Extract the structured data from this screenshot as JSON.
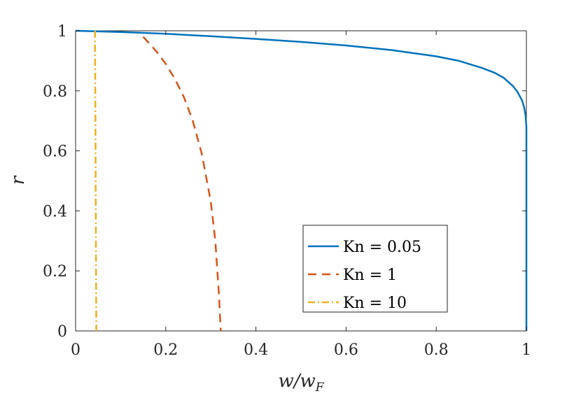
{
  "chart_data": {
    "type": "line",
    "title": "",
    "xlabel": {
      "base": "w/w",
      "sub": "F"
    },
    "ylabel": "r",
    "xlim": [
      0,
      1
    ],
    "ylim": [
      0,
      1
    ],
    "xticks": [
      "0",
      "0.2",
      "0.4",
      "0.6",
      "0.8",
      "1"
    ],
    "yticks": [
      "0",
      "0.2",
      "0.4",
      "0.6",
      "0.8",
      "1"
    ],
    "grid": false,
    "legend_position": "bottom-right",
    "series": [
      {
        "name": "Kn = 0.05",
        "color": "#0072BD",
        "style": "solid",
        "x": [
          0.0,
          0.1,
          0.2,
          0.3,
          0.4,
          0.5,
          0.6,
          0.7,
          0.8,
          0.85,
          0.9,
          0.93,
          0.95,
          0.97,
          0.98,
          0.99,
          0.995,
          0.998,
          1.0,
          1.0,
          1.0,
          1.0
        ],
        "y": [
          1.0,
          0.996,
          0.99,
          0.982,
          0.973,
          0.963,
          0.951,
          0.936,
          0.915,
          0.9,
          0.877,
          0.86,
          0.843,
          0.816,
          0.797,
          0.769,
          0.745,
          0.72,
          0.68,
          0.6,
          0.2,
          0.0
        ]
      },
      {
        "name": "Kn = 1",
        "color": "#D95319",
        "style": "dashed",
        "x": [
          0.15,
          0.18,
          0.2,
          0.22,
          0.24,
          0.26,
          0.28,
          0.3,
          0.31,
          0.318,
          0.322
        ],
        "y": [
          0.98,
          0.93,
          0.89,
          0.84,
          0.78,
          0.7,
          0.59,
          0.43,
          0.3,
          0.12,
          0.0
        ]
      },
      {
        "name": "Kn = 10",
        "color": "#EDB120",
        "style": "dashdot",
        "x": [
          0.043,
          0.044,
          0.045,
          0.046
        ],
        "y": [
          1.0,
          0.7,
          0.3,
          0.0
        ]
      }
    ]
  }
}
